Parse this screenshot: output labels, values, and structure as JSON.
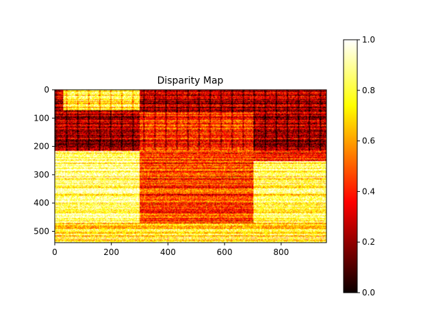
{
  "chart_data": [
    {
      "type": "heatmap",
      "title": "Disparity Map",
      "colormap": "hot",
      "xlim": [
        0,
        960
      ],
      "ylim": [
        540,
        0
      ],
      "x_ticks": [
        0,
        200,
        400,
        600,
        800
      ],
      "y_ticks": [
        0,
        100,
        200,
        300,
        400,
        500
      ],
      "x_tick_labels": [
        "0",
        "200",
        "400",
        "600",
        "800"
      ],
      "y_tick_labels": [
        "0",
        "100",
        "200",
        "300",
        "400",
        "500"
      ],
      "image_size": {
        "width": 960,
        "height": 540
      },
      "grid": false,
      "regions": [
        {
          "name": "upper background",
          "x": [
            0,
            960
          ],
          "y": [
            0,
            215
          ],
          "mean_value": 0.25
        },
        {
          "name": "upper-left bright patch",
          "x": [
            30,
            300
          ],
          "y": [
            0,
            70
          ],
          "mean_value": 0.75
        },
        {
          "name": "left mid band",
          "x": [
            0,
            300
          ],
          "y": [
            215,
            480
          ],
          "mean_value": 0.85
        },
        {
          "name": "center object",
          "x": [
            300,
            700
          ],
          "y": [
            80,
            470
          ],
          "mean_value": 0.45
        },
        {
          "name": "right lower region",
          "x": [
            700,
            960
          ],
          "y": [
            250,
            540
          ],
          "mean_value": 0.8
        },
        {
          "name": "bottom band",
          "x": [
            0,
            960
          ],
          "y": [
            470,
            540
          ],
          "mean_value": 0.75
        }
      ]
    },
    {
      "type": "colorbar",
      "colormap": "hot",
      "range": [
        0.0,
        1.0
      ],
      "ticks": [
        0.0,
        0.2,
        0.4,
        0.6,
        0.8,
        1.0
      ],
      "tick_labels": [
        "0.0",
        "0.2",
        "0.4",
        "0.6",
        "0.8",
        "1.0"
      ]
    }
  ]
}
